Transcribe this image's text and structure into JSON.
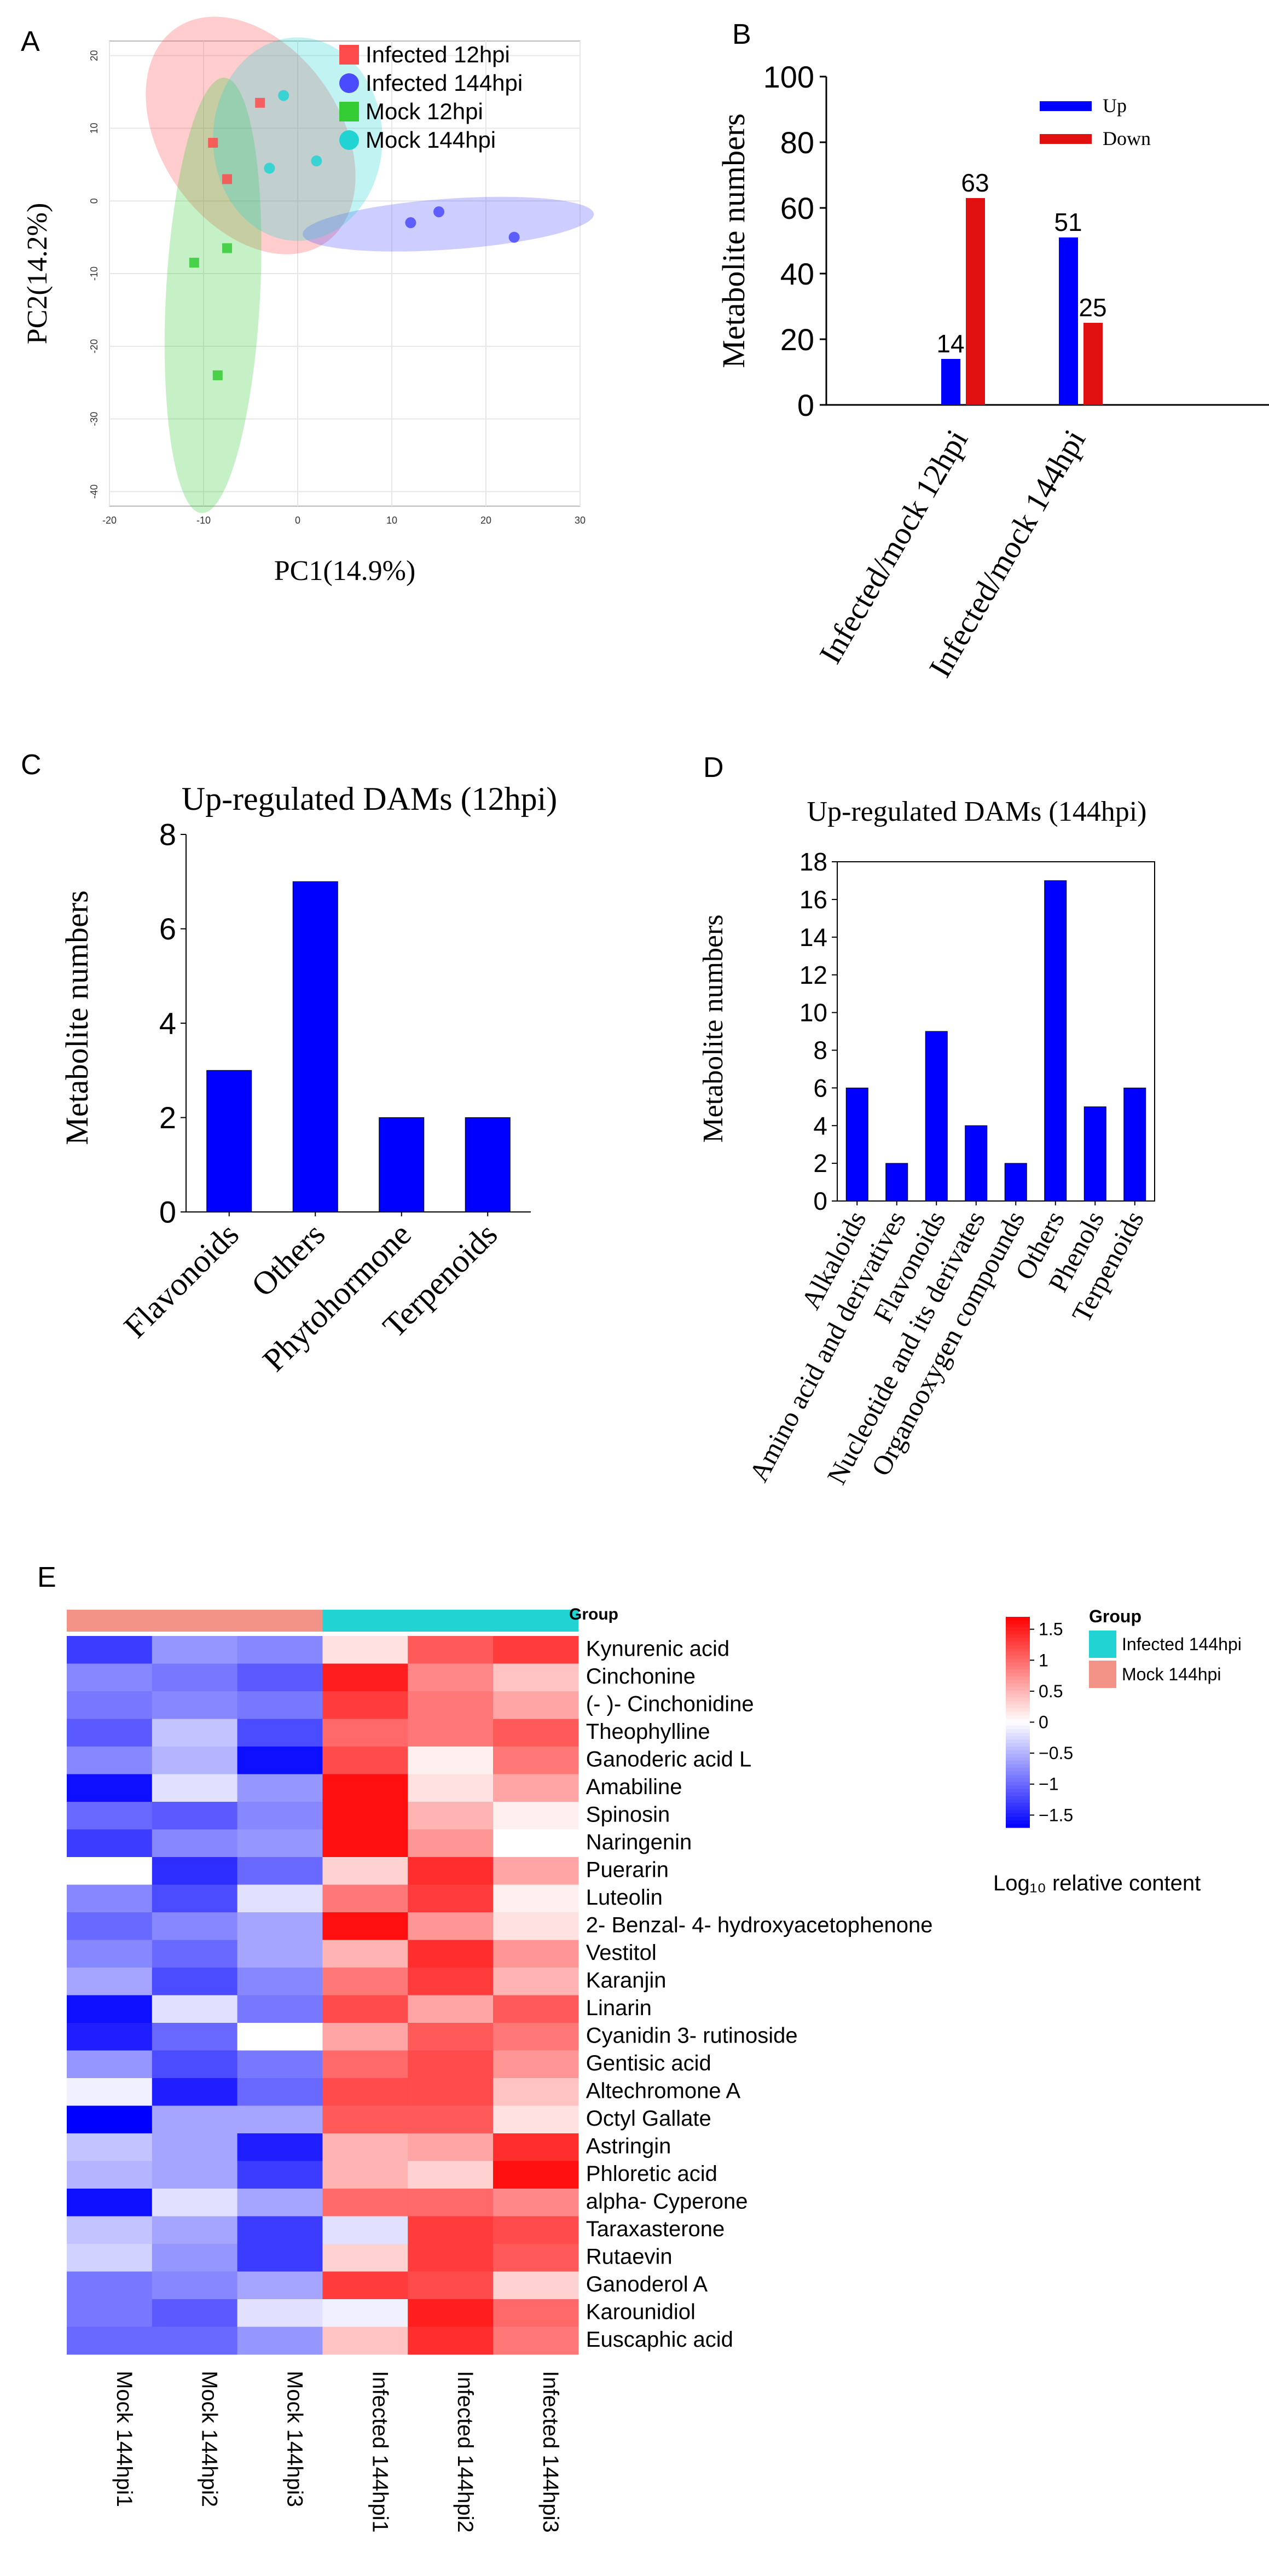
{
  "chart_data": [
    {
      "panel": "A",
      "type": "scatter",
      "title": "",
      "xlabel": "PC1(14.9%)",
      "ylabel": "PC2(14.2%)",
      "xlim": [
        -20,
        30
      ],
      "ylim": [
        -42,
        22
      ],
      "xticks": [
        -20,
        -10,
        0,
        10,
        20,
        30
      ],
      "yticks": [
        -40,
        -30,
        -20,
        -10,
        0,
        10,
        20
      ],
      "legend_position": "top-right",
      "series": [
        {
          "name": "Infected 12hpi",
          "color": "#ff4b4b",
          "marker": "square",
          "points": [
            [
              -9,
              8
            ],
            [
              -4,
              13.5
            ],
            [
              -7.5,
              3
            ]
          ],
          "ellipse": {
            "cx": -5,
            "cy": 9,
            "rx": 9.5,
            "ry": 18,
            "angle": -35
          }
        },
        {
          "name": "Infected 144hpi",
          "color": "#4a4aff",
          "marker": "circle",
          "points": [
            [
              12,
              -3
            ],
            [
              15,
              -1.5
            ],
            [
              23,
              -5
            ]
          ],
          "ellipse": {
            "cx": 16,
            "cy": -3.2,
            "rx": 15.5,
            "ry": 3.5,
            "angle": -4
          }
        },
        {
          "name": "Mock 12hpi",
          "color": "#33cc33",
          "marker": "square",
          "points": [
            [
              -11,
              -8.5
            ],
            [
              -8.5,
              -24
            ],
            [
              -7.5,
              -6.5
            ]
          ],
          "ellipse": {
            "cx": -9,
            "cy": -13,
            "rx": 5,
            "ry": 30,
            "angle": 3
          }
        },
        {
          "name": "Mock 144hpi",
          "color": "#22d3d3",
          "marker": "circle",
          "points": [
            [
              -1.5,
              14.5
            ],
            [
              -3,
              4.5
            ],
            [
              2,
              5.5
            ]
          ],
          "ellipse": {
            "cx": 0,
            "cy": 8.5,
            "rx": 9,
            "ry": 14,
            "angle": 0
          }
        }
      ]
    },
    {
      "panel": "B",
      "type": "bar",
      "title": "",
      "xlabel": "",
      "ylabel": "Metabolite numbers",
      "ylim": [
        0,
        100
      ],
      "yticks": [
        0,
        20,
        40,
        60,
        80,
        100
      ],
      "categories": [
        "Infected/mock 12hpi",
        "Infected/mock 144hpi"
      ],
      "legend_position": "top-right",
      "series": [
        {
          "name": "Up",
          "color": "#0000ff",
          "values": [
            14,
            51
          ],
          "labels": [
            "14",
            "51"
          ]
        },
        {
          "name": "Down",
          "color": "#e01010",
          "values": [
            63,
            25
          ],
          "labels": [
            "63",
            "25"
          ]
        }
      ]
    },
    {
      "panel": "C",
      "type": "bar",
      "title": "Up-regulated DAMs (12hpi)",
      "xlabel": "",
      "ylabel": "Metabolite numbers",
      "ylim": [
        0,
        8
      ],
      "yticks": [
        0,
        2,
        4,
        6,
        8
      ],
      "categories": [
        "Flavonoids",
        "Others",
        "Phytohormone",
        "Terpenoids"
      ],
      "values": [
        3,
        7,
        2,
        2
      ],
      "color": "#0000ff"
    },
    {
      "panel": "D",
      "type": "bar",
      "title": "Up-regulated DAMs (144hpi)",
      "xlabel": "",
      "ylabel": "Metabolite numbers",
      "ylim": [
        0,
        18
      ],
      "yticks": [
        0,
        2,
        4,
        6,
        8,
        10,
        12,
        14,
        16,
        18
      ],
      "categories": [
        "Alkaloids",
        "Amino acid and derivatives",
        "Flavonoids",
        "Nucleotide and its derivates",
        "Organooxygen compounds",
        "Others",
        "Phenols",
        "Terpenoids"
      ],
      "values": [
        6,
        2,
        9,
        4,
        2,
        17,
        5,
        6
      ],
      "color": "#0000ff"
    },
    {
      "panel": "E",
      "type": "heatmap",
      "title": "",
      "columns": [
        "Mock 144hpi1",
        "Mock 144hpi2",
        "Mock 144hpi3",
        "Infected 144hpi1",
        "Infected 144hpi2",
        "Infected 144hpi3"
      ],
      "column_groups": [
        "Mock 144hpi",
        "Mock 144hpi",
        "Mock 144hpi",
        "Infected 144hpi",
        "Infected 144hpi",
        "Infected 144hpi"
      ],
      "group_label": "Group",
      "group_legend_title": "Group",
      "groups": [
        {
          "name": "Infected 144hpi",
          "color": "#22d3d3"
        },
        {
          "name": "Mock 144hpi",
          "color": "#f39387"
        }
      ],
      "rows": [
        "Kynurenic acid",
        "Cinchonine",
        "(- )- Cinchonidine",
        "Theophylline",
        "Ganoderic acid L",
        "Amabiline",
        "Spinosin",
        "Naringenin",
        "Puerarin",
        "Luteolin",
        "2- Benzal- 4- hydroxyacetophenone",
        "Vestitol",
        "Karanjin",
        "Linarin",
        "Cyanidin 3- rutinoside",
        "Gentisic acid",
        "Altechromone A",
        "Octyl Gallate",
        "Astringin",
        "Phloretic acid",
        "alpha- Cyperone",
        "Taraxasterone",
        "Rutaevin",
        "Ganoderol A",
        "Karounidiol",
        "Euscaphic acid"
      ],
      "values": [
        [
          -1.3,
          -0.7,
          -0.8,
          0.2,
          1.1,
          1.3
        ],
        [
          -0.8,
          -0.9,
          -1.1,
          1.5,
          0.8,
          0.4
        ],
        [
          -0.9,
          -0.8,
          -0.9,
          1.3,
          0.9,
          0.6
        ],
        [
          -1.1,
          -0.4,
          -1.2,
          1.0,
          0.9,
          1.1
        ],
        [
          -0.8,
          -0.5,
          -1.6,
          1.2,
          0.1,
          0.9
        ],
        [
          -1.6,
          -0.2,
          -0.7,
          1.6,
          0.2,
          0.6
        ],
        [
          -1.0,
          -1.1,
          -0.8,
          1.6,
          0.5,
          0.1
        ],
        [
          -1.3,
          -0.8,
          -0.7,
          1.6,
          0.7,
          0.0
        ],
        [
          0.0,
          -1.4,
          -1.0,
          0.3,
          1.4,
          0.6
        ],
        [
          -0.8,
          -1.2,
          -0.2,
          0.9,
          1.3,
          0.1
        ],
        [
          -1.0,
          -0.8,
          -0.6,
          1.6,
          0.7,
          0.2
        ],
        [
          -0.8,
          -1.0,
          -0.6,
          0.5,
          1.4,
          0.7
        ],
        [
          -0.6,
          -1.2,
          -0.8,
          0.9,
          1.3,
          0.5
        ],
        [
          -1.6,
          -0.2,
          -0.9,
          1.2,
          0.6,
          1.1
        ],
        [
          -1.5,
          -1.0,
          0.0,
          0.6,
          1.1,
          0.9
        ],
        [
          -0.7,
          -1.2,
          -0.9,
          1.0,
          1.2,
          0.7
        ],
        [
          -0.1,
          -1.5,
          -1.0,
          1.2,
          1.2,
          0.4
        ],
        [
          -1.7,
          -0.6,
          -0.6,
          1.1,
          1.1,
          0.2
        ],
        [
          -0.4,
          -0.6,
          -1.5,
          0.5,
          0.6,
          1.4
        ],
        [
          -0.5,
          -0.6,
          -1.3,
          0.5,
          0.3,
          1.6
        ],
        [
          -1.6,
          -0.2,
          -0.6,
          1.0,
          1.0,
          0.8
        ],
        [
          -0.4,
          -0.6,
          -1.3,
          -0.2,
          1.3,
          1.2
        ],
        [
          -0.3,
          -0.7,
          -1.3,
          0.3,
          1.3,
          1.1
        ],
        [
          -0.9,
          -0.8,
          -0.6,
          1.3,
          1.2,
          0.3
        ],
        [
          -0.9,
          -1.1,
          -0.2,
          -0.1,
          1.5,
          1.0
        ],
        [
          -1.0,
          -1.0,
          -0.7,
          0.4,
          1.4,
          0.9
        ]
      ],
      "colorbar": {
        "range": [
          -1.7,
          1.7
        ],
        "ticks": [
          1.5,
          1,
          0.5,
          0,
          -0.5,
          -1,
          -1.5
        ],
        "tick_labels": [
          "1.5",
          "1",
          "0.5",
          "0",
          "−0.5",
          "−1",
          "−1.5"
        ],
        "label": "Log₁₀ relative content",
        "low_color": "#0000ff",
        "mid_color": "#ffffff",
        "high_color": "#ff0000"
      }
    }
  ],
  "panel_labels": [
    "A",
    "B",
    "C",
    "D",
    "E"
  ]
}
